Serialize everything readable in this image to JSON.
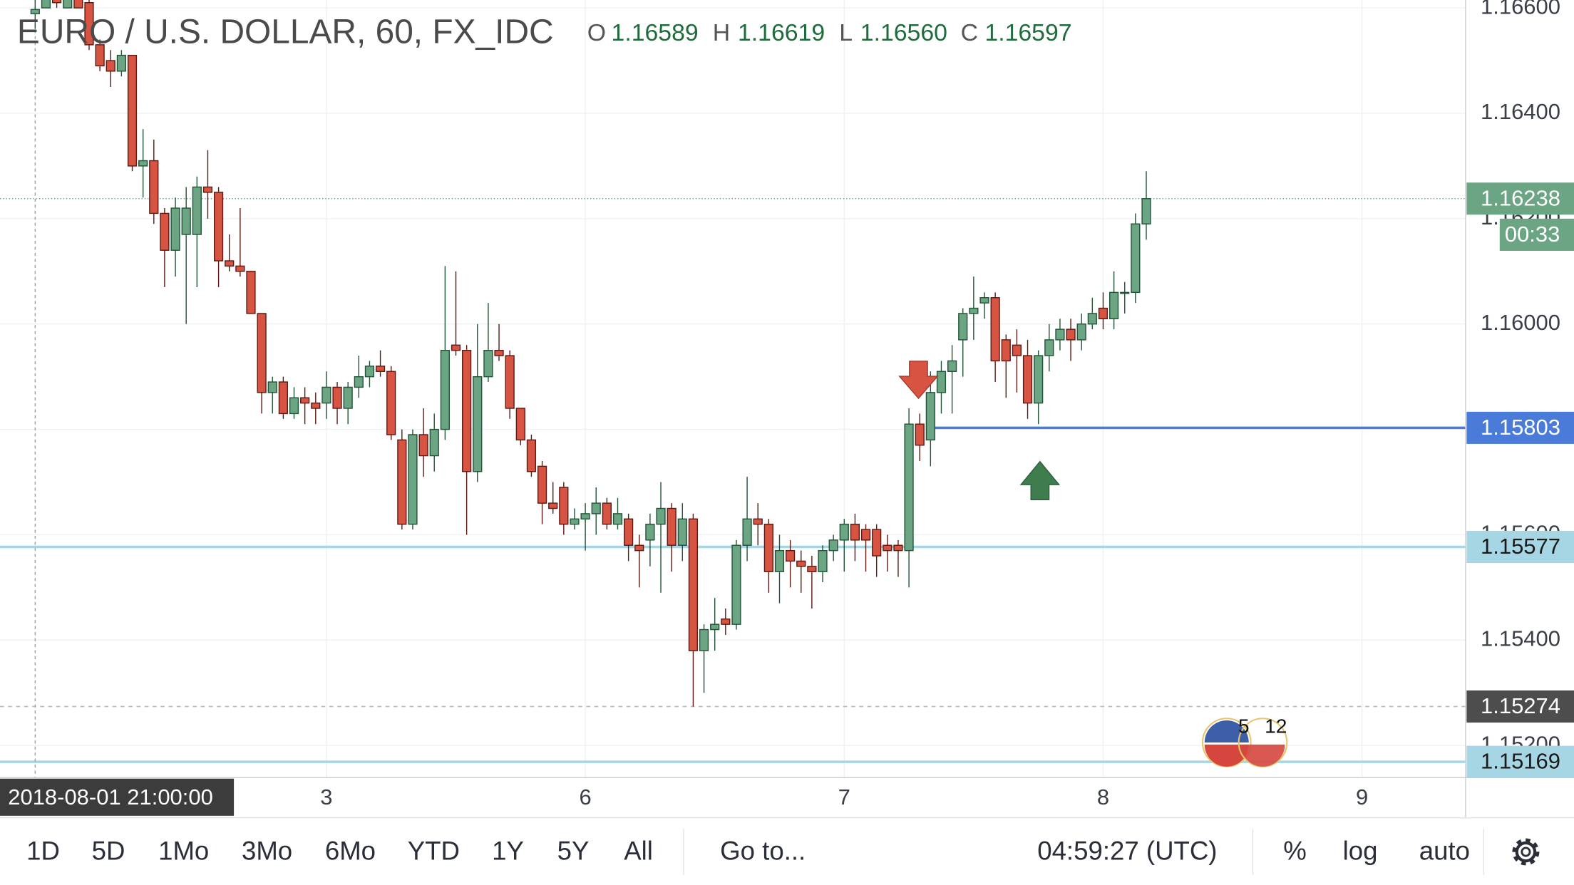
{
  "chart_data": {
    "type": "candlestick",
    "title": "EURO / U.S. DOLLAR, 60, FX_IDC",
    "up_color": "#6ba583",
    "up_border": "#225437",
    "down_color": "#d75442",
    "down_border": "#5b1a13",
    "open": [
      1.16589,
      1.166,
      1.1662,
      1.166,
      1.1662,
      1.1661,
      1.1653,
      1.165,
      1.1648,
      1.1651,
      1.163,
      1.1631,
      1.1621,
      1.1614,
      1.1617,
      1.1617,
      1.1626,
      1.1625,
      1.1612,
      1.1611,
      1.161,
      1.1602,
      1.1587,
      1.1589,
      1.1583,
      1.1586,
      1.1585,
      1.1585,
      1.1588,
      1.1584,
      1.1588,
      1.159,
      1.1592,
      1.1591,
      1.1578,
      1.1562,
      1.1579,
      1.1575,
      1.158,
      1.1596,
      1.1595,
      1.1572,
      1.159,
      1.1595,
      1.1594,
      1.1584,
      1.1578,
      1.1573,
      1.1566,
      1.1569,
      1.1562,
      1.1563,
      1.1564,
      1.1566,
      1.1562,
      1.1563,
      1.1558,
      1.1559,
      1.1562,
      1.1565,
      1.1558,
      1.1563,
      1.1538,
      1.1542,
      1.1544,
      1.1543,
      1.1558,
      1.1563,
      1.1562,
      1.1553,
      1.1557,
      1.1555,
      1.1554,
      1.1553,
      1.1557,
      1.1559,
      1.1562,
      1.1561,
      1.1561,
      1.1558,
      1.1558,
      1.1557,
      1.1581,
      1.1578,
      1.1587,
      1.1591,
      1.1597,
      1.1602,
      1.1604,
      1.1605,
      1.1597,
      1.1596,
      1.1594,
      1.1585,
      1.1594,
      1.1597,
      1.1599,
      1.1597,
      1.16,
      1.1603,
      1.1601,
      1.1606,
      1.1606,
      1.1619
    ],
    "high": [
      1.16619,
      1.1662,
      1.1662,
      1.1662,
      1.1662,
      1.1662,
      1.1654,
      1.1652,
      1.1652,
      1.1651,
      1.1637,
      1.1635,
      1.1622,
      1.1624,
      1.1626,
      1.1628,
      1.1633,
      1.1626,
      1.1617,
      1.1622,
      1.161,
      1.1602,
      1.159,
      1.159,
      1.1588,
      1.1588,
      1.1587,
      1.1591,
      1.1589,
      1.1589,
      1.1594,
      1.1593,
      1.1595,
      1.1592,
      1.158,
      1.158,
      1.1584,
      1.1583,
      1.1611,
      1.161,
      1.1596,
      1.16,
      1.1604,
      1.16,
      1.1595,
      1.1584,
      1.1579,
      1.1574,
      1.157,
      1.157,
      1.1565,
      1.1566,
      1.1569,
      1.1567,
      1.1567,
      1.1564,
      1.156,
      1.1564,
      1.157,
      1.1566,
      1.1566,
      1.1564,
      1.1543,
      1.1548,
      1.1546,
      1.1559,
      1.1571,
      1.1566,
      1.1563,
      1.156,
      1.1559,
      1.1557,
      1.1556,
      1.1558,
      1.156,
      1.1563,
      1.1564,
      1.1562,
      1.1562,
      1.156,
      1.1559,
      1.1584,
      1.1583,
      1.1591,
      1.1593,
      1.1596,
      1.1603,
      1.1609,
      1.1606,
      1.1606,
      1.1598,
      1.1599,
      1.1597,
      1.1595,
      1.16,
      1.1601,
      1.1601,
      1.1602,
      1.1605,
      1.1606,
      1.161,
      1.1608,
      1.1621,
      1.1629
    ],
    "low": [
      1.1656,
      1.166,
      1.166,
      1.166,
      1.166,
      1.1652,
      1.1648,
      1.1645,
      1.1647,
      1.1629,
      1.1624,
      1.1619,
      1.1607,
      1.1609,
      1.16,
      1.1607,
      1.162,
      1.1607,
      1.161,
      1.1609,
      1.1602,
      1.1583,
      1.1583,
      1.1582,
      1.1582,
      1.1581,
      1.1581,
      1.1582,
      1.1581,
      1.1581,
      1.1586,
      1.1588,
      1.159,
      1.1578,
      1.1561,
      1.1561,
      1.1571,
      1.1572,
      1.1578,
      1.1594,
      1.156,
      1.157,
      1.1589,
      1.1593,
      1.1582,
      1.1577,
      1.1571,
      1.1562,
      1.1564,
      1.156,
      1.1561,
      1.1557,
      1.156,
      1.1561,
      1.1561,
      1.1555,
      1.155,
      1.1554,
      1.1549,
      1.1553,
      1.1555,
      1.15274,
      1.153,
      1.1538,
      1.1541,
      1.1542,
      1.1555,
      1.1558,
      1.1549,
      1.1547,
      1.155,
      1.1549,
      1.1546,
      1.1551,
      1.1555,
      1.1553,
      1.1555,
      1.1553,
      1.1552,
      1.1553,
      1.1552,
      1.155,
      1.1574,
      1.1573,
      1.1583,
      1.1583,
      1.159,
      1.1597,
      1.1601,
      1.1589,
      1.1586,
      1.1587,
      1.1582,
      1.1581,
      1.1591,
      1.1595,
      1.1593,
      1.1595,
      1.1599,
      1.1599,
      1.1599,
      1.1602,
      1.1604,
      1.1616
    ],
    "close": [
      1.16597,
      1.1662,
      1.1661,
      1.1662,
      1.166,
      1.1653,
      1.1649,
      1.1648,
      1.1651,
      1.163,
      1.1631,
      1.1621,
      1.1614,
      1.1622,
      1.1622,
      1.1626,
      1.1625,
      1.1612,
      1.1611,
      1.161,
      1.1602,
      1.1587,
      1.1589,
      1.1583,
      1.1586,
      1.1585,
      1.1584,
      1.1588,
      1.1584,
      1.1588,
      1.159,
      1.1592,
      1.1591,
      1.1579,
      1.1562,
      1.1579,
      1.1575,
      1.158,
      1.1595,
      1.1595,
      1.1572,
      1.159,
      1.1595,
      1.1594,
      1.1584,
      1.1578,
      1.1572,
      1.1566,
      1.1565,
      1.1562,
      1.1563,
      1.1564,
      1.1566,
      1.1562,
      1.1564,
      1.1558,
      1.1557,
      1.1562,
      1.1565,
      1.1558,
      1.1563,
      1.1538,
      1.1542,
      1.1543,
      1.1543,
      1.1558,
      1.1563,
      1.1562,
      1.1553,
      1.1557,
      1.1555,
      1.1554,
      1.1553,
      1.1557,
      1.1559,
      1.1562,
      1.1559,
      1.1559,
      1.1556,
      1.1557,
      1.1557,
      1.1581,
      1.1577,
      1.1587,
      1.1591,
      1.1593,
      1.1602,
      1.1603,
      1.1605,
      1.1593,
      1.1593,
      1.1594,
      1.1585,
      1.1594,
      1.1597,
      1.1599,
      1.1597,
      1.16,
      1.1602,
      1.1601,
      1.1606,
      1.1606,
      1.1619,
      1.16238
    ],
    "xlim": [
      -3.26,
      132.6
    ],
    "xticks": [
      {
        "value": 27,
        "label": "3"
      },
      {
        "value": 51,
        "label": "6"
      },
      {
        "value": 75,
        "label": "7"
      },
      {
        "value": 99,
        "label": "8"
      },
      {
        "value": 123,
        "label": "9"
      }
    ],
    "ylim": [
      1.15139,
      1.16615
    ],
    "yticks": [
      {
        "value": 1.152,
        "label": "1.15200"
      },
      {
        "value": 1.154,
        "label": "1.15400"
      },
      {
        "value": 1.156,
        "label": "1.15600"
      },
      {
        "value": 1.158,
        "label": "1.15800"
      },
      {
        "value": 1.16,
        "label": "1.16000"
      },
      {
        "value": 1.162,
        "label": "1.16200"
      },
      {
        "value": 1.164,
        "label": "1.16400"
      },
      {
        "value": 1.166,
        "label": "1.16600"
      }
    ],
    "grid": true,
    "levels": [
      {
        "value": 1.15803,
        "color": "#4a7bd8",
        "text_color": "#ffffff",
        "style": "solid",
        "x_start": 83
      },
      {
        "value": 1.15577,
        "color": "#a6d6e3",
        "text_color": "#1a1a1a",
        "style": "solid"
      },
      {
        "value": 1.15274,
        "color": "#bdbdbd",
        "badge_color": "#4d4d4d",
        "text_color": "#ffffff",
        "style": "dashed"
      },
      {
        "value": 1.15169,
        "color": "#a6d6e3",
        "text_color": "#1a1a1a",
        "style": "solid"
      }
    ],
    "last_price": {
      "value": 1.16238,
      "countdown": "00:33",
      "color": "#6ba583"
    },
    "crosshair": {
      "x": 0,
      "label": "2018-08-01 21:00:00",
      "fields": [
        {
          "name": "O",
          "text": "1.16589"
        },
        {
          "name": "H",
          "text": "1.16619"
        },
        {
          "name": "L",
          "text": "1.16560"
        },
        {
          "name": "C",
          "text": "1.16597"
        }
      ]
    },
    "events": [
      "5",
      "12"
    ]
  },
  "toolbar": {
    "ranges": [
      "1D",
      "5D",
      "1Mo",
      "3Mo",
      "6Mo",
      "YTD",
      "1Y",
      "5Y",
      "All"
    ],
    "goto": "Go to...",
    "clock": "04:59:27 (UTC)",
    "options": [
      "%",
      "log",
      "auto"
    ]
  }
}
